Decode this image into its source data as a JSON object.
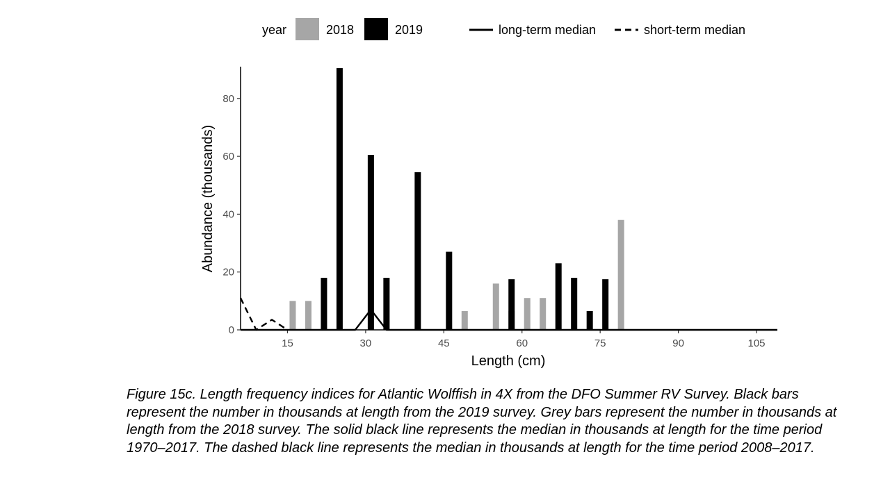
{
  "caption": "Figure 15c. Length frequency indices for Atlantic Wolffish in 4X from the DFO Summer RV Survey. Black bars represent the number in thousands at length from the 2019 survey. Grey bars represent the number in thousands at length from the 2018 survey. The solid black line represents the median in thousands at length for the time period 1970–2017. The dashed black line represents the median in thousands at length for the time period 2008–2017.",
  "colors": {
    "y2018": "#a6a6a6",
    "y2019": "#000000",
    "line": "#000000"
  },
  "chart_data": {
    "type": "bar",
    "title": "",
    "xlabel": "Length (cm)",
    "ylabel": "Abundance (thousands)",
    "xlim": [
      6,
      109
    ],
    "ylim": [
      0,
      91
    ],
    "xticks": [
      15,
      30,
      45,
      60,
      75,
      90,
      105
    ],
    "yticks": [
      0,
      20,
      40,
      60,
      80
    ],
    "grid": false,
    "legend_position": "top",
    "legend": {
      "title": "year",
      "items": [
        "2018",
        "2019",
        "long-term median",
        "short-term median"
      ]
    },
    "series": [
      {
        "name": "2018",
        "type": "bar",
        "points": [
          {
            "x": 16,
            "y": 10
          },
          {
            "x": 19,
            "y": 10
          },
          {
            "x": 49,
            "y": 6.5
          },
          {
            "x": 55,
            "y": 16
          },
          {
            "x": 58,
            "y": 6.5
          },
          {
            "x": 61,
            "y": 11
          },
          {
            "x": 64,
            "y": 11
          },
          {
            "x": 79,
            "y": 38
          }
        ]
      },
      {
        "name": "2019",
        "type": "bar",
        "points": [
          {
            "x": 22,
            "y": 18
          },
          {
            "x": 25,
            "y": 90.5
          },
          {
            "x": 31,
            "y": 60.5
          },
          {
            "x": 34,
            "y": 18
          },
          {
            "x": 40,
            "y": 54.5
          },
          {
            "x": 46,
            "y": 27
          },
          {
            "x": 58,
            "y": 17.5
          },
          {
            "x": 67,
            "y": 23
          },
          {
            "x": 70,
            "y": 18
          },
          {
            "x": 73,
            "y": 6.5
          },
          {
            "x": 76,
            "y": 17.5
          }
        ]
      },
      {
        "name": "long-term median",
        "type": "line",
        "dash": "solid",
        "points": [
          {
            "x": 6,
            "y": 0
          },
          {
            "x": 28,
            "y": 0
          },
          {
            "x": 31,
            "y": 7
          },
          {
            "x": 34,
            "y": 0
          },
          {
            "x": 109,
            "y": 0
          }
        ]
      },
      {
        "name": "short-term median",
        "type": "line",
        "dash": "dashed",
        "points": [
          {
            "x": 6,
            "y": 11
          },
          {
            "x": 9,
            "y": 0
          },
          {
            "x": 12,
            "y": 3.5
          },
          {
            "x": 15,
            "y": 0
          }
        ]
      }
    ]
  }
}
